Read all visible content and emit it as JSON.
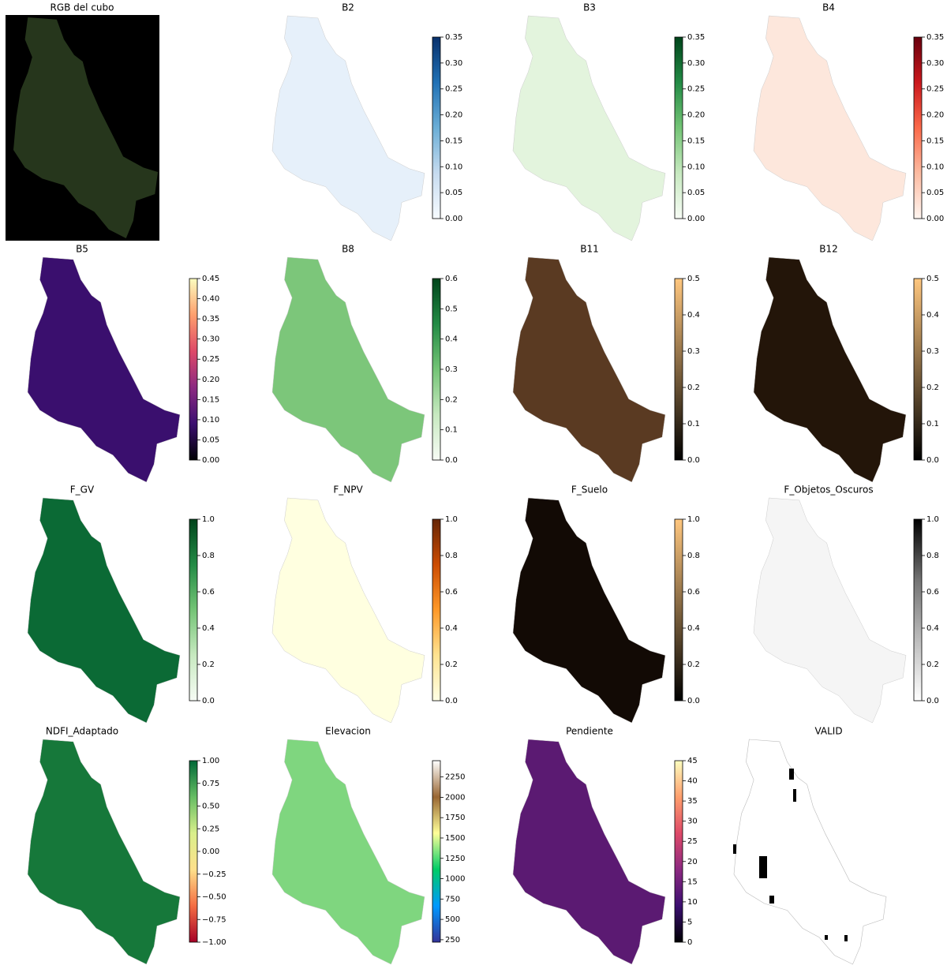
{
  "chart_data": [
    {
      "type": "rgb",
      "title": "RGB del cubo",
      "background": "#000000",
      "fill": "#26361c"
    },
    {
      "type": "image",
      "title": "B2",
      "fill": "#e6f0fa",
      "colors": [
        "#f7fbff",
        "#c6dbef",
        "#6baed6",
        "#2171b5",
        "#08306b"
      ],
      "clim": [
        0,
        0.35
      ],
      "cticks": [
        {
          "value": 0,
          "label": "0.00"
        },
        {
          "value": 0.05,
          "label": "0.05"
        },
        {
          "value": 0.1,
          "label": "0.10"
        },
        {
          "value": 0.15,
          "label": "0.15"
        },
        {
          "value": 0.2,
          "label": "0.20"
        },
        {
          "value": 0.25,
          "label": "0.25"
        },
        {
          "value": 0.3,
          "label": "0.30"
        },
        {
          "value": 0.35,
          "label": "0.35"
        }
      ]
    },
    {
      "type": "image",
      "title": "B3",
      "fill": "#e3f4dd",
      "colors": [
        "#f7fcf5",
        "#c7e9c0",
        "#74c476",
        "#238b45",
        "#00441b"
      ],
      "clim": [
        0,
        0.35
      ],
      "cticks": [
        {
          "value": 0,
          "label": "0.00"
        },
        {
          "value": 0.05,
          "label": "0.05"
        },
        {
          "value": 0.1,
          "label": "0.10"
        },
        {
          "value": 0.15,
          "label": "0.15"
        },
        {
          "value": 0.2,
          "label": "0.20"
        },
        {
          "value": 0.25,
          "label": "0.25"
        },
        {
          "value": 0.3,
          "label": "0.30"
        },
        {
          "value": 0.35,
          "label": "0.35"
        }
      ]
    },
    {
      "type": "image",
      "title": "B4",
      "fill": "#fde7dc",
      "colors": [
        "#fff5f0",
        "#fcbba1",
        "#fb6a4a",
        "#cb181d",
        "#67000d"
      ],
      "clim": [
        0,
        0.35
      ],
      "cticks": [
        {
          "value": 0,
          "label": "0.00"
        },
        {
          "value": 0.05,
          "label": "0.05"
        },
        {
          "value": 0.1,
          "label": "0.10"
        },
        {
          "value": 0.15,
          "label": "0.15"
        },
        {
          "value": 0.2,
          "label": "0.20"
        },
        {
          "value": 0.25,
          "label": "0.25"
        },
        {
          "value": 0.3,
          "label": "0.30"
        },
        {
          "value": 0.35,
          "label": "0.35"
        }
      ]
    },
    {
      "type": "image",
      "title": "B5",
      "fill": "#3a0f6e",
      "colors": [
        "#000004",
        "#3b0f70",
        "#8c2981",
        "#de4968",
        "#fe9f6d",
        "#fcfdbf"
      ],
      "clim": [
        0,
        0.45
      ],
      "cticks": [
        {
          "value": 0,
          "label": "0.00"
        },
        {
          "value": 0.05,
          "label": "0.05"
        },
        {
          "value": 0.1,
          "label": "0.10"
        },
        {
          "value": 0.15,
          "label": "0.15"
        },
        {
          "value": 0.2,
          "label": "0.20"
        },
        {
          "value": 0.25,
          "label": "0.25"
        },
        {
          "value": 0.3,
          "label": "0.30"
        },
        {
          "value": 0.35,
          "label": "0.35"
        },
        {
          "value": 0.4,
          "label": "0.40"
        },
        {
          "value": 0.45,
          "label": "0.45"
        }
      ]
    },
    {
      "type": "image",
      "title": "B8",
      "fill": "#7cc67a",
      "colors": [
        "#f7fcf5",
        "#c7e9c0",
        "#74c476",
        "#238b45",
        "#00441b"
      ],
      "clim": [
        0,
        0.6
      ],
      "cticks": [
        {
          "value": 0,
          "label": "0.0"
        },
        {
          "value": 0.1,
          "label": "0.1"
        },
        {
          "value": 0.2,
          "label": "0.2"
        },
        {
          "value": 0.3,
          "label": "0.3"
        },
        {
          "value": 0.4,
          "label": "0.4"
        },
        {
          "value": 0.5,
          "label": "0.5"
        },
        {
          "value": 0.6,
          "label": "0.6"
        }
      ]
    },
    {
      "type": "image",
      "title": "B11",
      "fill": "#5a3a22",
      "colors": [
        "#000000",
        "#ffc77f"
      ],
      "clim": [
        0,
        0.5
      ],
      "cticks": [
        {
          "value": 0,
          "label": "0.0"
        },
        {
          "value": 0.1,
          "label": "0.1"
        },
        {
          "value": 0.2,
          "label": "0.2"
        },
        {
          "value": 0.3,
          "label": "0.3"
        },
        {
          "value": 0.4,
          "label": "0.4"
        },
        {
          "value": 0.5,
          "label": "0.5"
        }
      ]
    },
    {
      "type": "image",
      "title": "B12",
      "fill": "#231509",
      "colors": [
        "#000000",
        "#ffc77f"
      ],
      "clim": [
        0,
        0.5
      ],
      "cticks": [
        {
          "value": 0,
          "label": "0.0"
        },
        {
          "value": 0.1,
          "label": "0.1"
        },
        {
          "value": 0.2,
          "label": "0.2"
        },
        {
          "value": 0.3,
          "label": "0.3"
        },
        {
          "value": 0.4,
          "label": "0.4"
        },
        {
          "value": 0.5,
          "label": "0.5"
        }
      ]
    },
    {
      "type": "image",
      "title": "F_GV",
      "fill": "#0b6a35",
      "colors": [
        "#f7fcf5",
        "#c7e9c0",
        "#74c476",
        "#238b45",
        "#00441b"
      ],
      "clim": [
        0,
        1
      ],
      "cticks": [
        {
          "value": 0,
          "label": "0.0"
        },
        {
          "value": 0.2,
          "label": "0.2"
        },
        {
          "value": 0.4,
          "label": "0.4"
        },
        {
          "value": 0.6,
          "label": "0.6"
        },
        {
          "value": 0.8,
          "label": "0.8"
        },
        {
          "value": 1,
          "label": "1.0"
        }
      ]
    },
    {
      "type": "image",
      "title": "F_NPV",
      "fill": "#ffffe0",
      "colors": [
        "#ffffe5",
        "#fee391",
        "#fe9929",
        "#cc4c02",
        "#662506"
      ],
      "clim": [
        0,
        1
      ],
      "cticks": [
        {
          "value": 0,
          "label": "0.0"
        },
        {
          "value": 0.2,
          "label": "0.2"
        },
        {
          "value": 0.4,
          "label": "0.4"
        },
        {
          "value": 0.6,
          "label": "0.6"
        },
        {
          "value": 0.8,
          "label": "0.8"
        },
        {
          "value": 1,
          "label": "1.0"
        }
      ]
    },
    {
      "type": "image",
      "title": "F_Suelo",
      "fill": "#120a05",
      "colors": [
        "#000000",
        "#ffc77f"
      ],
      "clim": [
        0,
        1
      ],
      "cticks": [
        {
          "value": 0,
          "label": "0.0"
        },
        {
          "value": 0.2,
          "label": "0.2"
        },
        {
          "value": 0.4,
          "label": "0.4"
        },
        {
          "value": 0.6,
          "label": "0.6"
        },
        {
          "value": 0.8,
          "label": "0.8"
        },
        {
          "value": 1,
          "label": "1.0"
        }
      ]
    },
    {
      "type": "image",
      "title": "F_Objetos_Oscuros",
      "fill": "#f5f5f5",
      "colors": [
        "#ffffff",
        "#bdbdbd",
        "#737373",
        "#000000"
      ],
      "clim": [
        0,
        1
      ],
      "cticks": [
        {
          "value": 0,
          "label": "0.0"
        },
        {
          "value": 0.2,
          "label": "0.2"
        },
        {
          "value": 0.4,
          "label": "0.4"
        },
        {
          "value": 0.6,
          "label": "0.6"
        },
        {
          "value": 0.8,
          "label": "0.8"
        },
        {
          "value": 1,
          "label": "1.0"
        }
      ]
    },
    {
      "type": "image",
      "title": "NDFI_Adaptado",
      "fill": "#16783a",
      "colors": [
        "#a50026",
        "#f46d43",
        "#fee08b",
        "#d9ef8b",
        "#66bd63",
        "#006837"
      ],
      "clim": [
        -1,
        1
      ],
      "cticks": [
        {
          "value": -1,
          "label": "−1.00"
        },
        {
          "value": -0.75,
          "label": "−0.75"
        },
        {
          "value": -0.5,
          "label": "−0.50"
        },
        {
          "value": -0.25,
          "label": "−0.25"
        },
        {
          "value": 0,
          "label": "0.00"
        },
        {
          "value": 0.25,
          "label": "0.25"
        },
        {
          "value": 0.5,
          "label": "0.50"
        },
        {
          "value": 0.75,
          "label": "0.75"
        },
        {
          "value": 1,
          "label": "1.00"
        }
      ]
    },
    {
      "type": "image",
      "title": "Elevacion",
      "fill": "#7fd67f",
      "colors": [
        "#333399",
        "#0099ff",
        "#00cc66",
        "#ffff99",
        "#996633",
        "#ffffff"
      ],
      "clim": [
        220,
        2450
      ],
      "cticks": [
        250,
        500,
        750,
        1000,
        1250,
        1500,
        1750,
        2000,
        2250
      ]
    },
    {
      "type": "image",
      "title": "Pendiente",
      "fill": "#5b1a72",
      "colors": [
        "#000004",
        "#3b0f70",
        "#8c2981",
        "#de4968",
        "#fe9f6d",
        "#fcfdbf"
      ],
      "clim": [
        0,
        45
      ],
      "cticks": [
        0,
        5,
        10,
        15,
        20,
        25,
        30,
        35,
        40,
        45
      ]
    },
    {
      "type": "mask",
      "title": "VALID",
      "fill": "#ffffff"
    }
  ]
}
